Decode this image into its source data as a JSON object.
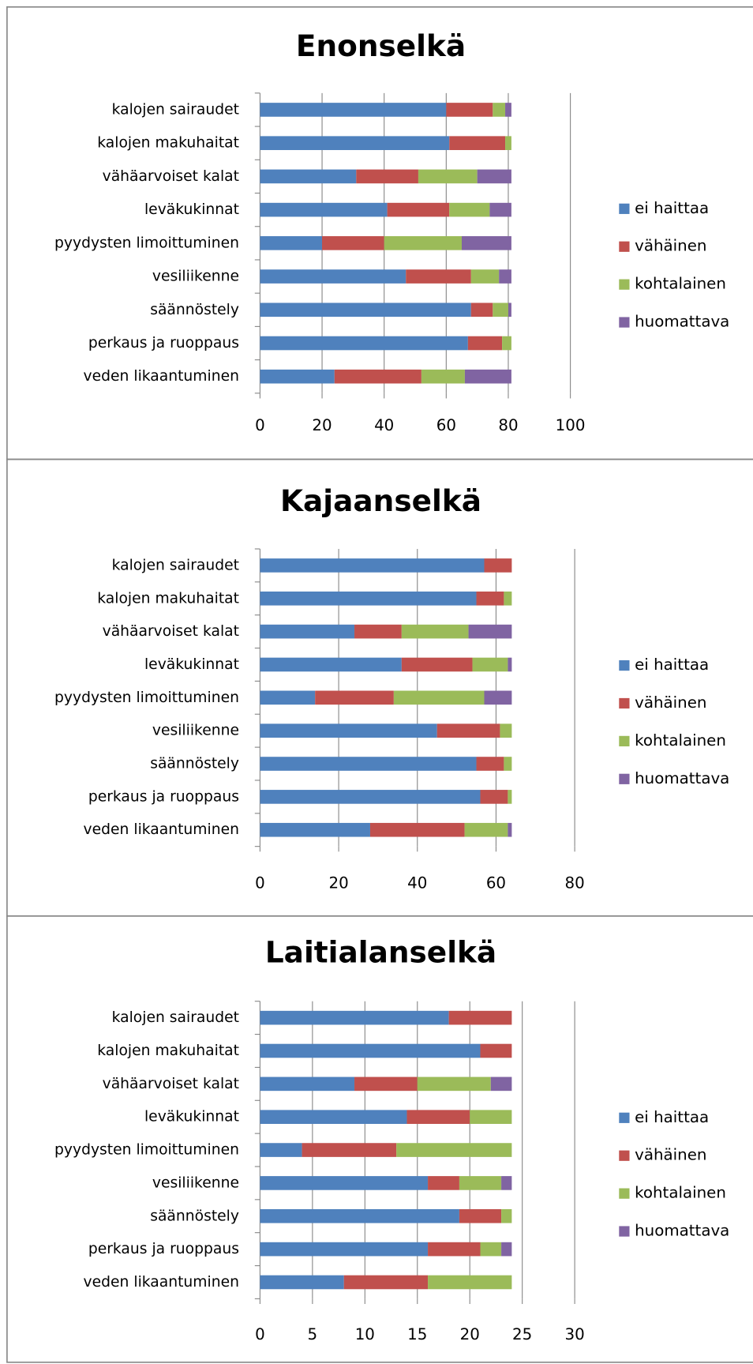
{
  "chart_data": [
    {
      "type": "bar",
      "orientation": "horizontal",
      "stacked": true,
      "title": "Enonselkä",
      "categories": [
        "kalojen sairaudet",
        "kalojen makuhaitat",
        "vähäarvoiset kalat",
        "leväkukinnat",
        "pyydysten limoittuminen",
        "vesiliikenne",
        "säännöstely",
        "perkaus ja ruoppaus",
        "veden likaantuminen"
      ],
      "series": [
        {
          "name": "ei haittaa",
          "color": "#4f81bd",
          "values": [
            60,
            61,
            31,
            41,
            20,
            47,
            68,
            67,
            24
          ]
        },
        {
          "name": "vähäinen",
          "color": "#c0504d",
          "values": [
            15,
            18,
            20,
            20,
            20,
            21,
            7,
            11,
            28
          ]
        },
        {
          "name": "kohtalainen",
          "color": "#9bbb59",
          "values": [
            4,
            2,
            19,
            13,
            25,
            9,
            5,
            3,
            14
          ]
        },
        {
          "name": "huomattava",
          "color": "#8064a2",
          "values": [
            2,
            0,
            11,
            7,
            16,
            4,
            1,
            0,
            15
          ]
        }
      ],
      "xlim": [
        0,
        100
      ],
      "xticks": [
        0,
        20,
        40,
        60,
        80,
        100
      ],
      "grid": true,
      "legend": "right"
    },
    {
      "type": "bar",
      "orientation": "horizontal",
      "stacked": true,
      "title": "Kajaanselkä",
      "categories": [
        "kalojen sairaudet",
        "kalojen makuhaitat",
        "vähäarvoiset kalat",
        "leväkukinnat",
        "pyydysten limoittuminen",
        "vesiliikenne",
        "säännöstely",
        "perkaus ja ruoppaus",
        "veden likaantuminen"
      ],
      "series": [
        {
          "name": "ei haittaa",
          "color": "#4f81bd",
          "values": [
            57,
            55,
            24,
            36,
            14,
            45,
            55,
            56,
            28
          ]
        },
        {
          "name": "vähäinen",
          "color": "#c0504d",
          "values": [
            7,
            7,
            12,
            18,
            20,
            16,
            7,
            7,
            24
          ]
        },
        {
          "name": "kohtalainen",
          "color": "#9bbb59",
          "values": [
            0,
            2,
            17,
            9,
            23,
            3,
            2,
            1,
            11
          ]
        },
        {
          "name": "huomattava",
          "color": "#8064a2",
          "values": [
            0,
            0,
            11,
            1,
            7,
            0,
            0,
            0,
            1
          ]
        }
      ],
      "xlim": [
        0,
        80
      ],
      "xticks": [
        0,
        20,
        40,
        60,
        80
      ],
      "grid": true,
      "legend": "right"
    },
    {
      "type": "bar",
      "orientation": "horizontal",
      "stacked": true,
      "title": "Laitialanselkä",
      "categories": [
        "kalojen sairaudet",
        "kalojen makuhaitat",
        "vähäarvoiset kalat",
        "leväkukinnat",
        "pyydysten limoittuminen",
        "vesiliikenne",
        "säännöstely",
        "perkaus ja ruoppaus",
        "veden likaantuminen"
      ],
      "series": [
        {
          "name": "ei haittaa",
          "color": "#4f81bd",
          "values": [
            18,
            21,
            9,
            14,
            4,
            16,
            19,
            16,
            8
          ]
        },
        {
          "name": "vähäinen",
          "color": "#c0504d",
          "values": [
            6,
            3,
            6,
            6,
            9,
            3,
            4,
            5,
            8
          ]
        },
        {
          "name": "kohtalainen",
          "color": "#9bbb59",
          "values": [
            0,
            0,
            7,
            4,
            11,
            4,
            1,
            2,
            8
          ]
        },
        {
          "name": "huomattava",
          "color": "#8064a2",
          "values": [
            0,
            0,
            2,
            0,
            0,
            1,
            0,
            1,
            0
          ]
        }
      ],
      "xlim": [
        0,
        30
      ],
      "xticks": [
        0,
        5,
        10,
        15,
        20,
        25,
        30
      ],
      "grid": true,
      "legend": "right"
    }
  ]
}
